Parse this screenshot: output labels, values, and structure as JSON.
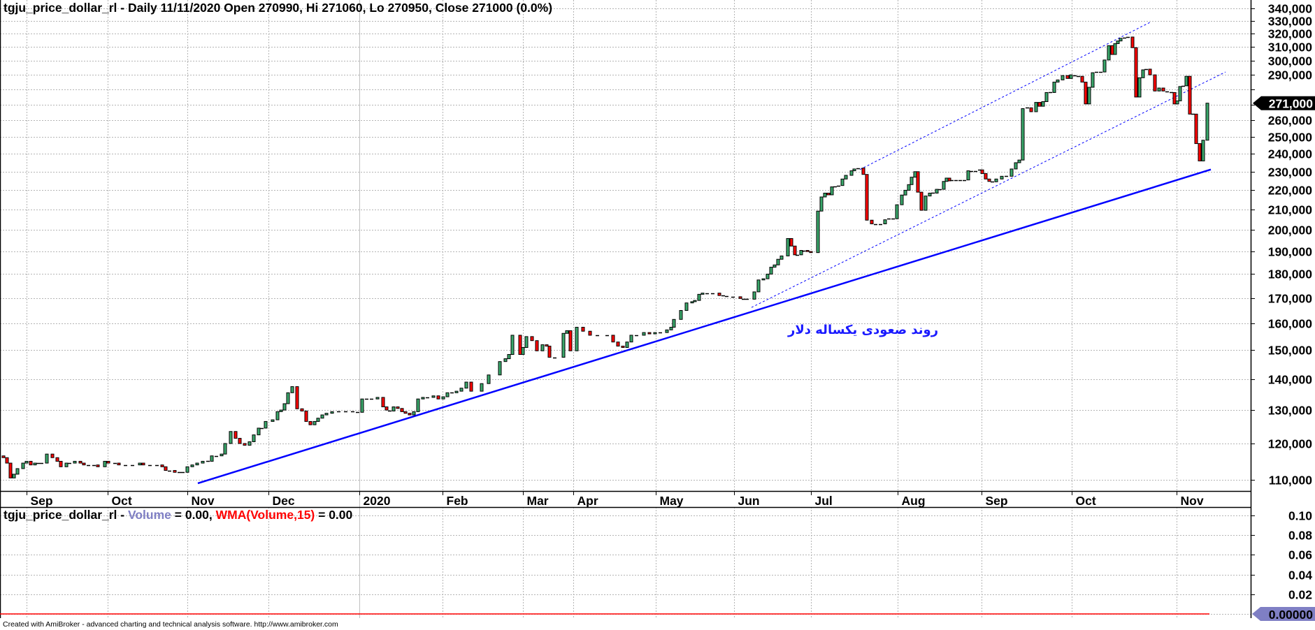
{
  "header": {
    "title": "tgju_price_dollar_rl - Daily 11/11/2020 Open 270990, Hi 271060, Lo 270950, Close 271000 (0.0%)"
  },
  "volume_panel": {
    "symbol": "tgju_price_dollar_rl - ",
    "volume_label": "Volume",
    "volume_value": " = 0.00, ",
    "wma_label": "WMA(Volume,15)",
    "wma_value": " = 0.00",
    "current_label": "0.00000"
  },
  "annotation": "روند صعودی یکساله دلار",
  "footer": "Created with AmiBroker - advanced charting and technical analysis software. http://www.amibroker.com",
  "colors": {
    "up": "#3aa86b",
    "down": "#ff0000",
    "trend": "#0000ff",
    "volume": "#7f7fc4",
    "wma": "#ff0000"
  },
  "chart_data": [
    {
      "type": "candlestick",
      "title": "tgju_price_dollar_rl - Daily",
      "x_unit": "trading day index",
      "price_unit": "thousand rials",
      "yscale": "log",
      "ylim": [
        107.1,
        346.9
      ],
      "yticks": [
        110,
        120,
        130,
        140,
        150,
        160,
        170,
        180,
        190,
        200,
        210,
        220,
        230,
        240,
        250,
        260,
        270,
        280,
        290,
        300,
        310,
        320,
        330,
        340
      ],
      "current_price_label": "271,000",
      "current_price": 271,
      "grid": true,
      "months": [
        {
          "label": "Sep",
          "t": 6.6
        },
        {
          "label": "Oct",
          "t": 29.8
        },
        {
          "label": "Nov",
          "t": 52.6
        },
        {
          "label": "Dec",
          "t": 75.8
        },
        {
          "label": "2020",
          "t": 101.8,
          "year": true
        },
        {
          "label": "Feb",
          "t": 125.6
        },
        {
          "label": "Mar",
          "t": 148.6
        },
        {
          "label": "Apr",
          "t": 163
        },
        {
          "label": "May",
          "t": 186.6
        },
        {
          "label": "Jun",
          "t": 209
        },
        {
          "label": "Jul",
          "t": 231
        },
        {
          "label": "Aug",
          "t": 255.8
        },
        {
          "label": "Sep",
          "t": 279.8
        },
        {
          "label": "Oct",
          "t": 305.6
        },
        {
          "label": "Nov",
          "t": 335.6
        }
      ],
      "first_open": 116.5,
      "bars_t_close": [
        [
          0,
          116
        ],
        [
          1,
          114.5
        ],
        [
          2,
          110.5
        ],
        [
          3,
          111.5
        ],
        [
          4,
          113
        ],
        [
          5.6,
          114.5
        ],
        [
          6.6,
          115
        ],
        [
          7.8,
          114
        ],
        [
          9,
          114.5
        ],
        [
          10,
          114.5
        ],
        [
          11,
          114.5
        ],
        [
          12.4,
          117
        ],
        [
          14,
          116
        ],
        [
          15.4,
          115
        ],
        [
          16.4,
          113.5
        ],
        [
          18,
          114.5
        ],
        [
          19,
          114.5
        ],
        [
          20.4,
          115
        ],
        [
          22,
          114.5
        ],
        [
          23,
          114
        ],
        [
          24.4,
          114
        ],
        [
          26,
          114
        ],
        [
          27,
          113.5
        ],
        [
          29,
          115
        ],
        [
          30,
          114.5
        ],
        [
          32,
          114.5
        ],
        [
          33,
          114
        ],
        [
          35,
          114
        ],
        [
          37,
          114
        ],
        [
          39,
          114.5
        ],
        [
          40,
          114
        ],
        [
          42,
          114
        ],
        [
          44,
          114
        ],
        [
          45.4,
          113.5
        ],
        [
          46.4,
          112.5
        ],
        [
          47.6,
          112.5
        ],
        [
          49,
          112
        ],
        [
          50.4,
          112
        ],
        [
          51.4,
          112
        ],
        [
          52.6,
          113.5
        ],
        [
          54,
          114
        ],
        [
          55.4,
          114.5
        ],
        [
          57,
          115
        ],
        [
          58.6,
          115
        ],
        [
          59.6,
          116.5
        ],
        [
          61,
          116.5
        ],
        [
          62.4,
          117
        ],
        [
          63.4,
          120
        ],
        [
          65,
          123.5
        ],
        [
          66.4,
          121.5
        ],
        [
          67.6,
          120
        ],
        [
          69,
          119.5
        ],
        [
          70.4,
          120.5
        ],
        [
          71.6,
          122.5
        ],
        [
          73,
          124.5
        ],
        [
          74,
          124.5
        ],
        [
          75,
          126.5
        ],
        [
          77,
          127
        ],
        [
          78.4,
          129.5
        ],
        [
          79.4,
          130
        ],
        [
          80.4,
          132
        ],
        [
          81.4,
          135.5
        ],
        [
          82.6,
          137.5
        ],
        [
          84,
          130.4
        ],
        [
          85.4,
          129.7
        ],
        [
          86.6,
          126.5
        ],
        [
          87.8,
          125.5
        ],
        [
          89,
          126.5
        ],
        [
          90,
          127.5
        ],
        [
          91.2,
          128.5
        ],
        [
          92.4,
          129
        ],
        [
          94,
          129.5
        ],
        [
          96,
          129.5
        ],
        [
          98,
          129.5
        ],
        [
          100,
          129.5
        ],
        [
          101.4,
          129.3
        ],
        [
          102.6,
          133.5
        ],
        [
          104,
          133.5
        ],
        [
          105.4,
          133.5
        ],
        [
          107,
          134
        ],
        [
          108.6,
          131
        ],
        [
          109.6,
          130
        ],
        [
          110.6,
          129.7
        ],
        [
          111.6,
          131
        ],
        [
          112.8,
          130.5
        ],
        [
          114,
          129.5
        ],
        [
          115,
          129
        ],
        [
          116.2,
          128.5
        ],
        [
          117.4,
          129.5
        ],
        [
          118.6,
          133.5
        ],
        [
          120,
          134
        ],
        [
          121.4,
          134
        ],
        [
          123,
          134.5
        ],
        [
          124.4,
          133.5
        ],
        [
          125.8,
          134.2
        ],
        [
          127,
          135.5
        ],
        [
          128.4,
          135.5
        ],
        [
          129.6,
          136
        ],
        [
          131,
          137
        ],
        [
          132.4,
          139
        ],
        [
          133.8,
          136
        ],
        [
          136.8,
          138.5
        ],
        [
          138.8,
          141.4
        ],
        [
          142,
          146
        ],
        [
          143.6,
          147
        ],
        [
          144.6,
          148.5
        ],
        [
          145.6,
          155.5
        ],
        [
          147.8,
          148.5
        ],
        [
          148.6,
          151
        ],
        [
          149.6,
          155
        ],
        [
          151.2,
          153.5
        ],
        [
          152.6,
          149.8
        ],
        [
          154.2,
          152
        ],
        [
          155.4,
          151.5
        ],
        [
          156.2,
          147.5
        ],
        [
          157.8,
          147.5
        ],
        [
          160.2,
          156.2
        ],
        [
          161.2,
          157.2
        ],
        [
          162.2,
          149.8
        ],
        [
          164,
          158.5
        ],
        [
          165.8,
          157
        ],
        [
          167.8,
          155.5
        ],
        [
          170,
          155.5
        ],
        [
          172.8,
          155.5
        ],
        [
          174.4,
          153
        ],
        [
          175.8,
          151.5
        ],
        [
          177.2,
          151
        ],
        [
          178.4,
          153
        ],
        [
          179.6,
          155.5
        ],
        [
          181.2,
          155.5
        ],
        [
          183.2,
          156.5
        ],
        [
          184.8,
          156
        ],
        [
          186.4,
          156.5
        ],
        [
          188,
          156.5
        ],
        [
          189.8,
          157.5
        ],
        [
          191,
          158.5
        ],
        [
          191.8,
          161.5
        ],
        [
          193.8,
          165
        ],
        [
          195.4,
          168
        ],
        [
          197,
          168.5
        ],
        [
          197.8,
          169
        ],
        [
          199,
          171.5
        ],
        [
          200,
          172
        ],
        [
          201.4,
          172
        ],
        [
          203,
          172
        ],
        [
          204.8,
          171
        ],
        [
          206,
          171
        ],
        [
          207,
          170.8
        ],
        [
          208.8,
          170.5
        ],
        [
          210.8,
          169.8
        ],
        [
          211.8,
          169.5
        ],
        [
          212.8,
          169.5
        ],
        [
          214.8,
          172.5
        ],
        [
          216,
          177.5
        ],
        [
          217.4,
          178
        ],
        [
          218.6,
          180
        ],
        [
          219.6,
          183
        ],
        [
          220.6,
          184
        ],
        [
          221.6,
          186.5
        ],
        [
          222.6,
          188
        ],
        [
          224.4,
          196
        ],
        [
          225.4,
          192.5
        ],
        [
          226.4,
          188.5
        ],
        [
          227.2,
          188.5
        ],
        [
          228.2,
          190.5
        ],
        [
          229,
          190.5
        ],
        [
          230,
          190
        ],
        [
          231,
          189.5
        ],
        [
          233,
          209.3
        ],
        [
          234,
          216.5
        ],
        [
          235,
          218.5
        ],
        [
          236,
          217.6
        ],
        [
          237,
          221.8
        ],
        [
          238,
          222
        ],
        [
          239,
          222.5
        ],
        [
          240,
          226
        ],
        [
          241,
          228
        ],
        [
          242.6,
          230.5
        ],
        [
          243.4,
          231.5
        ],
        [
          244.6,
          232
        ],
        [
          246,
          228.5
        ],
        [
          247,
          204.8
        ],
        [
          248.4,
          203
        ],
        [
          249.6,
          203
        ],
        [
          251,
          203
        ],
        [
          252.2,
          205
        ],
        [
          253.4,
          205.5
        ],
        [
          254.6,
          205.5
        ],
        [
          255.6,
          212.5
        ],
        [
          257,
          217.5
        ],
        [
          258,
          220
        ],
        [
          259,
          223
        ],
        [
          259.8,
          227
        ],
        [
          260.8,
          230
        ],
        [
          261.6,
          219
        ],
        [
          262.6,
          209.7
        ],
        [
          263.8,
          217
        ],
        [
          265,
          218.5
        ],
        [
          266,
          218.5
        ],
        [
          267,
          220.5
        ],
        [
          268,
          220.5
        ],
        [
          269,
          224.7
        ],
        [
          269.8,
          226.5
        ],
        [
          270.6,
          225
        ],
        [
          271.4,
          225.5
        ],
        [
          272.6,
          225.5
        ],
        [
          273.8,
          225.5
        ],
        [
          275,
          225.5
        ],
        [
          276,
          230.5
        ],
        [
          277,
          230.5
        ],
        [
          278.2,
          230.5
        ],
        [
          279.4,
          231
        ],
        [
          280,
          229
        ],
        [
          281,
          226
        ],
        [
          282,
          224.7
        ],
        [
          283,
          224.5
        ],
        [
          284,
          226
        ],
        [
          285.6,
          227.5
        ],
        [
          287,
          227.5
        ],
        [
          288.4,
          231.5
        ],
        [
          289.6,
          235
        ],
        [
          290.6,
          236.5
        ],
        [
          291.6,
          267.5
        ],
        [
          293,
          268
        ],
        [
          294,
          265.5
        ],
        [
          295.4,
          271.5
        ],
        [
          296.4,
          269
        ],
        [
          297.4,
          272
        ],
        [
          298.4,
          278
        ],
        [
          299.6,
          278
        ],
        [
          300.6,
          285
        ],
        [
          301.6,
          286.5
        ],
        [
          303,
          289.5
        ],
        [
          304.4,
          287.5
        ],
        [
          305.4,
          290
        ],
        [
          306.6,
          289.5
        ],
        [
          307.6,
          289
        ],
        [
          308.6,
          285
        ],
        [
          309.6,
          270.5
        ],
        [
          310.6,
          281.5
        ],
        [
          311.6,
          291.5
        ],
        [
          312.8,
          292
        ],
        [
          314,
          292
        ],
        [
          315,
          300.5
        ],
        [
          316.2,
          311
        ],
        [
          317.2,
          304.5
        ],
        [
          318,
          312.5
        ],
        [
          318.8,
          314.5
        ],
        [
          319.6,
          316.5
        ],
        [
          320.8,
          317
        ],
        [
          321.8,
          317.5
        ],
        [
          323,
          309.5
        ],
        [
          324,
          275
        ],
        [
          325,
          288
        ],
        [
          326,
          293.5
        ],
        [
          327,
          294
        ],
        [
          328,
          290
        ],
        [
          329.4,
          279
        ],
        [
          330.6,
          281
        ],
        [
          331.8,
          279
        ],
        [
          333,
          278.5
        ],
        [
          334.2,
          278
        ],
        [
          335,
          270.5
        ],
        [
          335.8,
          272.5
        ],
        [
          336.6,
          282
        ],
        [
          337.6,
          282.5
        ],
        [
          338.4,
          289
        ],
        [
          339.4,
          264
        ],
        [
          340.4,
          264
        ],
        [
          341.2,
          246
        ],
        [
          342.2,
          236
        ],
        [
          343.2,
          248
        ],
        [
          344.4,
          271
        ]
      ],
      "trendlines": [
        {
          "name": "support",
          "style": "solid",
          "from": [
            55.6,
            109.1
          ],
          "to": [
            345.4,
            231.2
          ]
        },
        {
          "name": "channel-upper",
          "style": "dotted",
          "from": [
            245,
            231.2
          ],
          "to": [
            328.4,
            329.4
          ]
        },
        {
          "name": "channel-lower",
          "style": "dotted",
          "from": [
            214,
            166.2
          ],
          "to": [
            349.6,
            292
          ]
        }
      ]
    },
    {
      "type": "line",
      "title": "Volume, WMA(Volume,15)",
      "ylim": [
        -0.0043,
        0.1085
      ],
      "yticks": [
        0.02,
        0.04,
        0.06,
        0.08,
        0.1
      ],
      "series": [
        {
          "name": "Volume",
          "value": 0.0
        },
        {
          "name": "WMA(Volume,15)",
          "value": 0.0
        }
      ],
      "last_t": 344.4
    }
  ]
}
